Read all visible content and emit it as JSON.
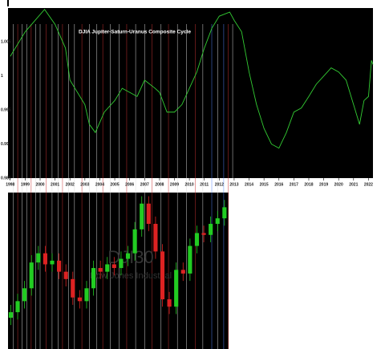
{
  "chart_data": [
    {
      "type": "line",
      "title": "DJIA Jupiter-Saturn-Uranus Composite Cycle",
      "x": [
        1998.0,
        1999.0,
        2000.3,
        2001.0,
        2001.7,
        2002.0,
        2003.0,
        2003.3,
        2003.7,
        2004.3,
        2005.0,
        2005.5,
        2006.0,
        2006.5,
        2007.0,
        2007.7,
        2008.0,
        2008.5,
        2009.0,
        2009.5,
        2010.0,
        2010.5,
        2011.0,
        2011.5,
        2012.0,
        2012.7,
        2013.0,
        2013.5,
        2014.0,
        2014.5,
        2015.0,
        2015.5,
        2016.0,
        2016.5,
        2017.0,
        2017.5,
        2018.0,
        2018.5,
        2019.0,
        2019.5,
        2020.0,
        2020.5,
        2021.0,
        2021.4,
        2021.7,
        2022.0,
        2022.2,
        2022.3
      ],
      "values": [
        1.0029,
        1.0065,
        1.0098,
        1.0076,
        1.0041,
        0.9994,
        0.9958,
        0.9929,
        0.9917,
        0.9947,
        0.9964,
        0.9982,
        0.9976,
        0.997,
        0.9994,
        0.9982,
        0.9976,
        0.9947,
        0.9947,
        0.9958,
        0.9982,
        1.0006,
        1.0041,
        1.007,
        1.0088,
        1.0094,
        1.0082,
        1.0065,
        1.0006,
        0.9958,
        0.9923,
        0.99,
        0.9894,
        0.9917,
        0.9947,
        0.9953,
        0.997,
        0.9988,
        1.0,
        1.0012,
        1.0006,
        0.9994,
        0.9958,
        0.9929,
        0.9964,
        0.997,
        1.0023,
        1.0017
      ],
      "color": "#33cc33",
      "xlim": [
        1997.85,
        2022.3
      ],
      "xticks": [
        1998,
        1999,
        2000,
        2001,
        2002,
        2003,
        2004,
        2005,
        2006,
        2007,
        2008,
        2009,
        2010,
        2011,
        2012,
        2013,
        2014,
        2015,
        2016,
        2017,
        2018,
        2019,
        2020,
        2021,
        2022
      ],
      "ylim": [
        0.985,
        1.01
      ],
      "yticks": [
        0.985,
        0.99,
        0.995,
        1,
        1.005
      ],
      "vlines": {
        "x": [
          1998.2,
          1998.5,
          1998.8,
          1999.1,
          1999.4,
          1999.7,
          2000.0,
          2000.4,
          2000.8,
          2001.2,
          2001.5,
          2001.9,
          2002.3,
          2002.8,
          2003.3,
          2003.8,
          2004.2,
          2004.7,
          2005.3,
          2005.8,
          2006.4,
          2007.0,
          2007.5,
          2008.1,
          2008.6,
          2009.2,
          2009.8,
          2010.4,
          2010.9,
          2011.5,
          2011.9,
          2012.3,
          2012.6,
          2012.9
        ],
        "colors": [
          "#dddddd",
          "#cc3333",
          "#dddddd",
          "#dddddd",
          "#cc3333",
          "#dddddd",
          "#dddddd",
          "#cc3333",
          "#dddddd",
          "#dddddd",
          "#cc3333",
          "#dddddd",
          "#dddddd",
          "#cc3333",
          "#dddddd",
          "#dddddd",
          "#cc3333",
          "#dddddd",
          "#dddddd",
          "#cc3333",
          "#dddddd",
          "#dddddd",
          "#cc3333",
          "#dddddd",
          "#cc3333",
          "#dddddd",
          "#dddddd",
          "#cc3333",
          "#dddddd",
          "#5588ff",
          "#dddddd",
          "#5588ff",
          "#cc3333",
          "#dddddd"
        ]
      }
    },
    {
      "type": "candlestick",
      "watermark": [
        "DJI30",
        "Dow Jones Industrial"
      ],
      "x": [
        1998.0,
        1998.5,
        1999.0,
        1999.5,
        2000.0,
        2000.5,
        2001.0,
        2001.5,
        2002.0,
        2002.5,
        2003.0,
        2003.5,
        2004.0,
        2004.5,
        2005.0,
        2005.5,
        2006.0,
        2006.5,
        2007.0,
        2007.5,
        2008.0,
        2008.5,
        2009.0,
        2009.5,
        2010.0,
        2010.5,
        2011.0,
        2011.5,
        2012.0,
        2012.5,
        2013.0,
        2013.5
      ],
      "open": [
        7700,
        8000,
        8600,
        9300,
        10700,
        11200,
        10600,
        10800,
        10200,
        9800,
        8800,
        8600,
        9300,
        10400,
        10200,
        10600,
        10400,
        10900,
        11200,
        12500,
        13900,
        12800,
        11300,
        8700,
        8300,
        10300,
        10100,
        11600,
        12300,
        12200,
        12800,
        13100
      ],
      "high": [
        8400,
        9000,
        9700,
        11100,
        11600,
        11600,
        11200,
        11200,
        10600,
        10200,
        9200,
        9700,
        10800,
        10800,
        11000,
        11000,
        11300,
        11600,
        12900,
        14300,
        14300,
        13200,
        11700,
        9100,
        10700,
        10700,
        12000,
        12700,
        12700,
        13200,
        13500,
        14100
      ],
      "low": [
        7300,
        7600,
        8200,
        8900,
        10300,
        10200,
        10200,
        9800,
        9400,
        8400,
        8200,
        8200,
        8900,
        9800,
        9800,
        10000,
        10000,
        10500,
        10800,
        12100,
        12400,
        10900,
        8300,
        7900,
        7900,
        9700,
        9700,
        11200,
        11800,
        11800,
        12400,
        12700
      ],
      "close": [
        8000,
        8600,
        9300,
        10700,
        11200,
        10600,
        10800,
        10200,
        9800,
        8800,
        8600,
        9300,
        10400,
        10200,
        10600,
        10400,
        10900,
        11200,
        12500,
        13900,
        12800,
        11300,
        8700,
        8300,
        10300,
        10100,
        11600,
        12300,
        12200,
        12800,
        13100,
        13700
      ],
      "up_color": "#22cc22",
      "down_color": "#dd2222",
      "xlim": [
        1997.8,
        2013.8
      ],
      "ylim": [
        6000,
        14500
      ]
    }
  ]
}
